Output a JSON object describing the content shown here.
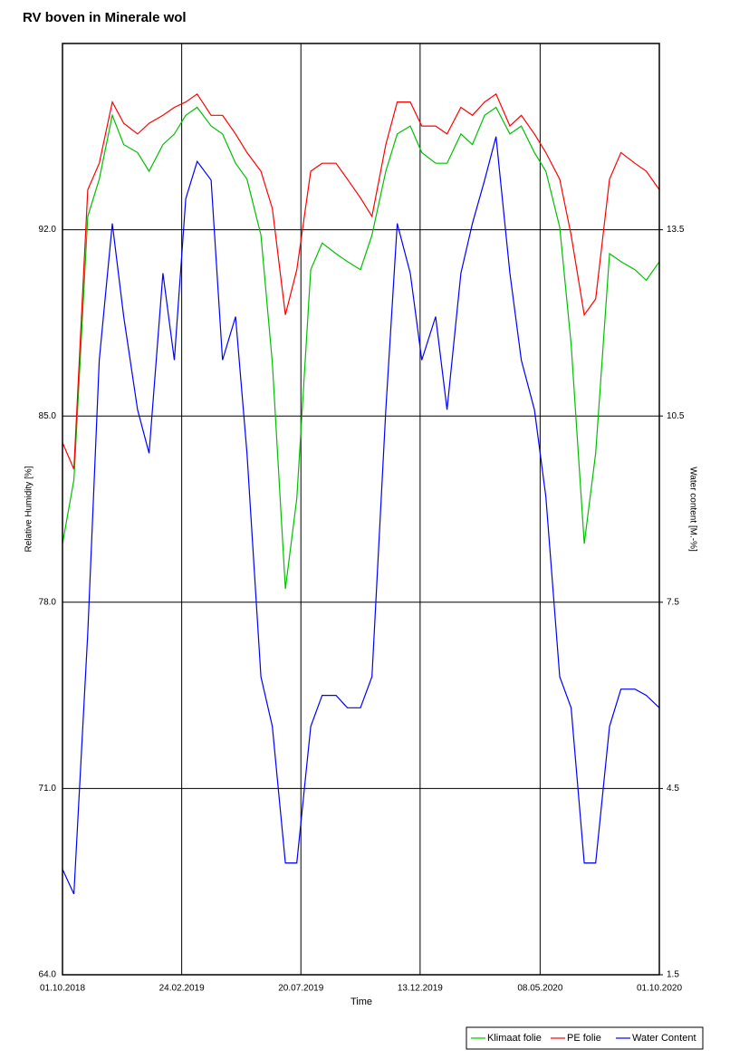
{
  "chart_data": {
    "type": "line",
    "title": "RV boven in Minerale wol",
    "x_label": "Time",
    "y_label": "Relative Humidity [%]",
    "y2_label": "Water content [M.-%]",
    "x": [
      "01.10.2018",
      "15.10.2018",
      "01.11.2018",
      "15.11.2018",
      "01.12.2018",
      "15.12.2018",
      "01.01.2019",
      "15.01.2019",
      "01.02.2019",
      "15.02.2019",
      "01.03.2019",
      "15.03.2019",
      "01.04.2019",
      "15.04.2019",
      "01.05.2019",
      "15.05.2019",
      "01.06.2019",
      "15.06.2019",
      "01.07.2019",
      "15.07.2019",
      "01.08.2019",
      "15.08.2019",
      "01.09.2019",
      "15.09.2019",
      "01.10.2019",
      "15.10.2019",
      "01.11.2019",
      "15.11.2019",
      "01.12.2019",
      "15.12.2019",
      "01.01.2020",
      "15.01.2020",
      "01.02.2020",
      "15.02.2020",
      "01.03.2020",
      "15.03.2020",
      "01.04.2020",
      "15.04.2020",
      "01.05.2020",
      "15.05.2020",
      "01.06.2020",
      "15.06.2020",
      "01.07.2020",
      "15.07.2020",
      "01.08.2020",
      "15.08.2020",
      "01.09.2020",
      "15.09.2020",
      "01.10.2020"
    ],
    "xlim": [
      "01.10.2018",
      "01.10.2020"
    ],
    "xticks": [
      "01.10.2018",
      "24.02.2019",
      "20.07.2019",
      "13.12.2019",
      "08.05.2020",
      "01.10.2020"
    ],
    "ylim": [
      64,
      99
    ],
    "yticks": [
      {
        "value": 64,
        "label": "64.0"
      },
      {
        "value": 71,
        "label": "71.0"
      },
      {
        "value": 78,
        "label": "78.0"
      },
      {
        "value": 85,
        "label": "85.0"
      },
      {
        "value": 92,
        "label": "92.0"
      }
    ],
    "y2lim": [
      1.5,
      16.5
    ],
    "y2ticks": [
      1.5,
      4.5,
      7.5,
      10.5,
      13.5
    ],
    "grid": true,
    "legend": "bottom-right",
    "series": [
      {
        "name": "Klimaat folie",
        "color": "#00c000",
        "values": [
          80.2,
          82.6,
          92.5,
          93.9,
          96.3,
          95.2,
          94.9,
          94.2,
          95.2,
          95.6,
          96.3,
          96.6,
          95.9,
          95.6,
          94.5,
          93.9,
          91.8,
          87,
          78.5,
          81.9,
          90.5,
          91.5,
          91.1,
          90.8,
          90.5,
          91.8,
          94.2,
          95.6,
          95.9,
          94.9,
          94.5,
          94.5,
          95.6,
          95.2,
          96.3,
          96.6,
          95.6,
          95.9,
          94.9,
          94.2,
          92.1,
          87.7,
          80.2,
          83.6,
          91.1,
          90.8,
          90.5,
          90.1,
          90.8
        ]
      },
      {
        "name": "PE folie",
        "color": "#ff0000",
        "values": [
          84,
          83,
          93.5,
          94.5,
          96.8,
          96,
          95.6,
          96,
          96.3,
          96.6,
          96.8,
          97.1,
          96.3,
          96.3,
          95.6,
          94.9,
          94.2,
          92.8,
          88.8,
          90.5,
          94.2,
          94.5,
          94.5,
          93.9,
          93.2,
          92.5,
          95.2,
          96.8,
          96.8,
          95.9,
          95.9,
          95.6,
          96.6,
          96.3,
          96.8,
          97.1,
          95.9,
          96.3,
          95.6,
          94.9,
          93.9,
          91.8,
          88.8,
          89.4,
          93.9,
          94.9,
          94.5,
          94.2,
          93.5
        ]
      },
      {
        "name": "Water Content",
        "color": "#0000ff",
        "axis": "y2",
        "values": [
          3.2,
          2.8,
          7,
          11.4,
          13.6,
          12.1,
          10.6,
          9.9,
          12.8,
          11.4,
          14,
          14.6,
          14.3,
          11.4,
          12.1,
          9.9,
          6.3,
          5.5,
          3.3,
          3.3,
          5.5,
          6,
          6,
          5.8,
          5.8,
          6.3,
          10.6,
          13.6,
          12.8,
          11.4,
          12.1,
          10.6,
          12.8,
          13.6,
          14.3,
          15,
          12.8,
          11.4,
          10.6,
          9.2,
          6.3,
          5.8,
          3.3,
          3.3,
          5.5,
          6.1,
          6.1,
          6,
          5.8
        ]
      }
    ]
  }
}
